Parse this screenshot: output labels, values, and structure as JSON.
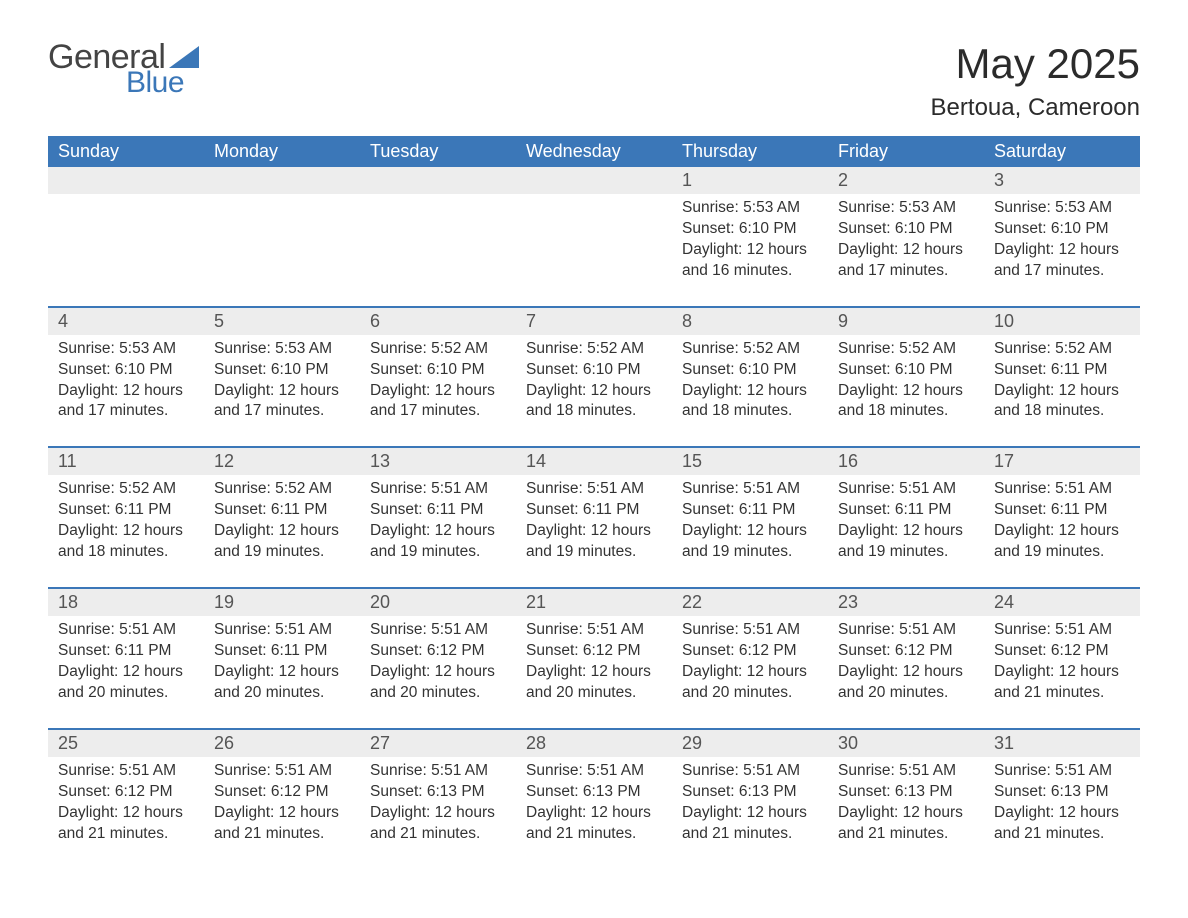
{
  "logo": {
    "text_general": "General",
    "text_blue": "Blue",
    "triangle_color": "#3b77b8"
  },
  "header": {
    "month_title": "May 2025",
    "location": "Bertoua, Cameroon"
  },
  "styling": {
    "header_bg": "#3b77b8",
    "header_text": "#ffffff",
    "daynum_band_bg": "#ededed",
    "week_separator_color": "#3b77b8",
    "body_text_color": "#333333",
    "page_bg": "#ffffff",
    "font_family": "Segoe UI",
    "month_title_fontsize": 42,
    "location_fontsize": 24,
    "dayhead_fontsize": 18,
    "cell_fontsize": 15.5,
    "columns": 7
  },
  "day_headers": [
    "Sunday",
    "Monday",
    "Tuesday",
    "Wednesday",
    "Thursday",
    "Friday",
    "Saturday"
  ],
  "weeks": [
    {
      "nums": [
        "",
        "",
        "",
        "",
        "1",
        "2",
        "3"
      ],
      "cells": [
        {},
        {},
        {},
        {},
        {
          "sunrise": "Sunrise: 5:53 AM",
          "sunset": "Sunset: 6:10 PM",
          "day1": "Daylight: 12 hours",
          "day2": "and 16 minutes."
        },
        {
          "sunrise": "Sunrise: 5:53 AM",
          "sunset": "Sunset: 6:10 PM",
          "day1": "Daylight: 12 hours",
          "day2": "and 17 minutes."
        },
        {
          "sunrise": "Sunrise: 5:53 AM",
          "sunset": "Sunset: 6:10 PM",
          "day1": "Daylight: 12 hours",
          "day2": "and 17 minutes."
        }
      ]
    },
    {
      "nums": [
        "4",
        "5",
        "6",
        "7",
        "8",
        "9",
        "10"
      ],
      "cells": [
        {
          "sunrise": "Sunrise: 5:53 AM",
          "sunset": "Sunset: 6:10 PM",
          "day1": "Daylight: 12 hours",
          "day2": "and 17 minutes."
        },
        {
          "sunrise": "Sunrise: 5:53 AM",
          "sunset": "Sunset: 6:10 PM",
          "day1": "Daylight: 12 hours",
          "day2": "and 17 minutes."
        },
        {
          "sunrise": "Sunrise: 5:52 AM",
          "sunset": "Sunset: 6:10 PM",
          "day1": "Daylight: 12 hours",
          "day2": "and 17 minutes."
        },
        {
          "sunrise": "Sunrise: 5:52 AM",
          "sunset": "Sunset: 6:10 PM",
          "day1": "Daylight: 12 hours",
          "day2": "and 18 minutes."
        },
        {
          "sunrise": "Sunrise: 5:52 AM",
          "sunset": "Sunset: 6:10 PM",
          "day1": "Daylight: 12 hours",
          "day2": "and 18 minutes."
        },
        {
          "sunrise": "Sunrise: 5:52 AM",
          "sunset": "Sunset: 6:10 PM",
          "day1": "Daylight: 12 hours",
          "day2": "and 18 minutes."
        },
        {
          "sunrise": "Sunrise: 5:52 AM",
          "sunset": "Sunset: 6:11 PM",
          "day1": "Daylight: 12 hours",
          "day2": "and 18 minutes."
        }
      ]
    },
    {
      "nums": [
        "11",
        "12",
        "13",
        "14",
        "15",
        "16",
        "17"
      ],
      "cells": [
        {
          "sunrise": "Sunrise: 5:52 AM",
          "sunset": "Sunset: 6:11 PM",
          "day1": "Daylight: 12 hours",
          "day2": "and 18 minutes."
        },
        {
          "sunrise": "Sunrise: 5:52 AM",
          "sunset": "Sunset: 6:11 PM",
          "day1": "Daylight: 12 hours",
          "day2": "and 19 minutes."
        },
        {
          "sunrise": "Sunrise: 5:51 AM",
          "sunset": "Sunset: 6:11 PM",
          "day1": "Daylight: 12 hours",
          "day2": "and 19 minutes."
        },
        {
          "sunrise": "Sunrise: 5:51 AM",
          "sunset": "Sunset: 6:11 PM",
          "day1": "Daylight: 12 hours",
          "day2": "and 19 minutes."
        },
        {
          "sunrise": "Sunrise: 5:51 AM",
          "sunset": "Sunset: 6:11 PM",
          "day1": "Daylight: 12 hours",
          "day2": "and 19 minutes."
        },
        {
          "sunrise": "Sunrise: 5:51 AM",
          "sunset": "Sunset: 6:11 PM",
          "day1": "Daylight: 12 hours",
          "day2": "and 19 minutes."
        },
        {
          "sunrise": "Sunrise: 5:51 AM",
          "sunset": "Sunset: 6:11 PM",
          "day1": "Daylight: 12 hours",
          "day2": "and 19 minutes."
        }
      ]
    },
    {
      "nums": [
        "18",
        "19",
        "20",
        "21",
        "22",
        "23",
        "24"
      ],
      "cells": [
        {
          "sunrise": "Sunrise: 5:51 AM",
          "sunset": "Sunset: 6:11 PM",
          "day1": "Daylight: 12 hours",
          "day2": "and 20 minutes."
        },
        {
          "sunrise": "Sunrise: 5:51 AM",
          "sunset": "Sunset: 6:11 PM",
          "day1": "Daylight: 12 hours",
          "day2": "and 20 minutes."
        },
        {
          "sunrise": "Sunrise: 5:51 AM",
          "sunset": "Sunset: 6:12 PM",
          "day1": "Daylight: 12 hours",
          "day2": "and 20 minutes."
        },
        {
          "sunrise": "Sunrise: 5:51 AM",
          "sunset": "Sunset: 6:12 PM",
          "day1": "Daylight: 12 hours",
          "day2": "and 20 minutes."
        },
        {
          "sunrise": "Sunrise: 5:51 AM",
          "sunset": "Sunset: 6:12 PM",
          "day1": "Daylight: 12 hours",
          "day2": "and 20 minutes."
        },
        {
          "sunrise": "Sunrise: 5:51 AM",
          "sunset": "Sunset: 6:12 PM",
          "day1": "Daylight: 12 hours",
          "day2": "and 20 minutes."
        },
        {
          "sunrise": "Sunrise: 5:51 AM",
          "sunset": "Sunset: 6:12 PM",
          "day1": "Daylight: 12 hours",
          "day2": "and 21 minutes."
        }
      ]
    },
    {
      "nums": [
        "25",
        "26",
        "27",
        "28",
        "29",
        "30",
        "31"
      ],
      "cells": [
        {
          "sunrise": "Sunrise: 5:51 AM",
          "sunset": "Sunset: 6:12 PM",
          "day1": "Daylight: 12 hours",
          "day2": "and 21 minutes."
        },
        {
          "sunrise": "Sunrise: 5:51 AM",
          "sunset": "Sunset: 6:12 PM",
          "day1": "Daylight: 12 hours",
          "day2": "and 21 minutes."
        },
        {
          "sunrise": "Sunrise: 5:51 AM",
          "sunset": "Sunset: 6:13 PM",
          "day1": "Daylight: 12 hours",
          "day2": "and 21 minutes."
        },
        {
          "sunrise": "Sunrise: 5:51 AM",
          "sunset": "Sunset: 6:13 PM",
          "day1": "Daylight: 12 hours",
          "day2": "and 21 minutes."
        },
        {
          "sunrise": "Sunrise: 5:51 AM",
          "sunset": "Sunset: 6:13 PM",
          "day1": "Daylight: 12 hours",
          "day2": "and 21 minutes."
        },
        {
          "sunrise": "Sunrise: 5:51 AM",
          "sunset": "Sunset: 6:13 PM",
          "day1": "Daylight: 12 hours",
          "day2": "and 21 minutes."
        },
        {
          "sunrise": "Sunrise: 5:51 AM",
          "sunset": "Sunset: 6:13 PM",
          "day1": "Daylight: 12 hours",
          "day2": "and 21 minutes."
        }
      ]
    }
  ]
}
